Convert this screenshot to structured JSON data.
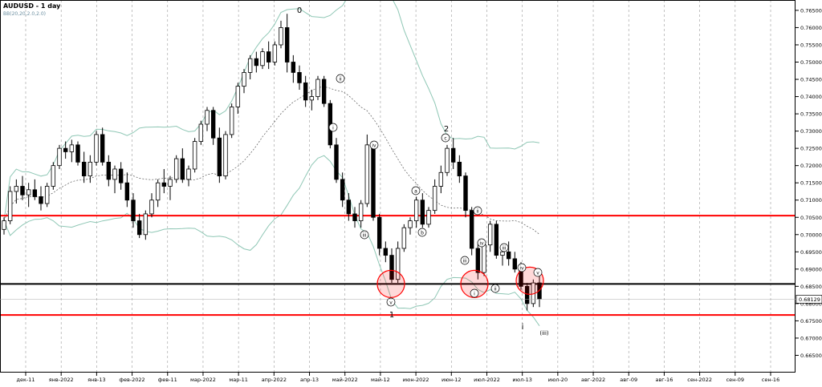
{
  "header": {
    "title": "AUDUSD - 1 day",
    "indicator": "BB(20,20,2.0,2.0)"
  },
  "price_label": "0.68129",
  "chart_data": {
    "type": "candlestick",
    "title": "AUDUSD - 1 day",
    "indicator": "BB(20,20,2.0,2.0)",
    "ylim": [
      0.66,
      0.768
    ],
    "y_ticks": [
      "0.76500",
      "0.76000",
      "0.75500",
      "0.75000",
      "0.74500",
      "0.74000",
      "0.73500",
      "0.73000",
      "0.72500",
      "0.72000",
      "0.71500",
      "0.71000",
      "0.70500",
      "0.70000",
      "0.69500",
      "0.69000",
      "0.68500",
      "0.68000",
      "0.67500",
      "0.67000",
      "0.66500"
    ],
    "x_ticks": [
      "дек-11",
      "янв-2022",
      "янв-13",
      "фев-2022",
      "фев-11",
      "мар-2022",
      "мар-11",
      "апр-2022",
      "апр-13",
      "май-2022",
      "май-12",
      "июн-2022",
      "июн-12",
      "июл-2022",
      "июл-13",
      "июл-20",
      "авг-2022",
      "авг-09",
      "авг-16",
      "сен-2022",
      "сен-09",
      "сен-16"
    ],
    "colors": {
      "bull_candle": "#ffffff",
      "bear_candle": "#000000",
      "bollinger": "#8fc7b5",
      "support_resistance": "#ff0000",
      "key_level": "#000000",
      "grid": "#9a9a9a"
    },
    "horizontal_lines": [
      {
        "price": 0.7055,
        "color": "red"
      },
      {
        "price": 0.6857,
        "color": "black"
      },
      {
        "price": 0.6767,
        "color": "red"
      }
    ],
    "wave_labels": [
      "0",
      "1",
      "2",
      "i",
      "ii",
      "iii",
      "iv",
      "v",
      "a",
      "b",
      "c",
      "ii",
      "iii",
      "iv",
      "i",
      "ii",
      "iii",
      "iv",
      "v",
      "i",
      "(iii)"
    ],
    "candles_ohlc": [
      [
        0.7015,
        0.705,
        0.7,
        0.704
      ],
      [
        0.704,
        0.714,
        0.703,
        0.7125
      ],
      [
        0.7125,
        0.716,
        0.709,
        0.714
      ],
      [
        0.714,
        0.717,
        0.71,
        0.7115
      ],
      [
        0.7115,
        0.715,
        0.708,
        0.713
      ],
      [
        0.713,
        0.716,
        0.71,
        0.711
      ],
      [
        0.711,
        0.714,
        0.707,
        0.709
      ],
      [
        0.709,
        0.715,
        0.708,
        0.714
      ],
      [
        0.714,
        0.721,
        0.713,
        0.72
      ],
      [
        0.72,
        0.726,
        0.719,
        0.725
      ],
      [
        0.725,
        0.727,
        0.722,
        0.724
      ],
      [
        0.724,
        0.7275,
        0.721,
        0.726
      ],
      [
        0.726,
        0.727,
        0.72,
        0.721
      ],
      [
        0.721,
        0.724,
        0.715,
        0.717
      ],
      [
        0.717,
        0.723,
        0.715,
        0.721
      ],
      [
        0.721,
        0.73,
        0.72,
        0.729
      ],
      [
        0.729,
        0.731,
        0.72,
        0.721
      ],
      [
        0.721,
        0.723,
        0.714,
        0.716
      ],
      [
        0.716,
        0.72,
        0.712,
        0.719
      ],
      [
        0.719,
        0.721,
        0.713,
        0.715
      ],
      [
        0.715,
        0.718,
        0.708,
        0.71
      ],
      [
        0.71,
        0.712,
        0.702,
        0.704
      ],
      [
        0.704,
        0.706,
        0.699,
        0.7
      ],
      [
        0.7,
        0.707,
        0.6985,
        0.706
      ],
      [
        0.706,
        0.712,
        0.705,
        0.71
      ],
      [
        0.71,
        0.716,
        0.708,
        0.715
      ],
      [
        0.715,
        0.719,
        0.712,
        0.714
      ],
      [
        0.714,
        0.717,
        0.71,
        0.716
      ],
      [
        0.716,
        0.723,
        0.715,
        0.722
      ],
      [
        0.722,
        0.725,
        0.715,
        0.716
      ],
      [
        0.716,
        0.72,
        0.714,
        0.719
      ],
      [
        0.719,
        0.728,
        0.718,
        0.727
      ],
      [
        0.727,
        0.733,
        0.726,
        0.732
      ],
      [
        0.732,
        0.737,
        0.73,
        0.736
      ],
      [
        0.736,
        0.737,
        0.726,
        0.728
      ],
      [
        0.728,
        0.731,
        0.715,
        0.717
      ],
      [
        0.717,
        0.73,
        0.716,
        0.729
      ],
      [
        0.729,
        0.738,
        0.728,
        0.737
      ],
      [
        0.737,
        0.744,
        0.735,
        0.743
      ],
      [
        0.743,
        0.748,
        0.741,
        0.747
      ],
      [
        0.747,
        0.752,
        0.745,
        0.751
      ],
      [
        0.751,
        0.753,
        0.747,
        0.749
      ],
      [
        0.749,
        0.754,
        0.748,
        0.753
      ],
      [
        0.753,
        0.756,
        0.748,
        0.75
      ],
      [
        0.75,
        0.756,
        0.749,
        0.755
      ],
      [
        0.755,
        0.762,
        0.754,
        0.76
      ],
      [
        0.76,
        0.764,
        0.747,
        0.75
      ],
      [
        0.75,
        0.752,
        0.744,
        0.747
      ],
      [
        0.747,
        0.749,
        0.742,
        0.744
      ],
      [
        0.744,
        0.746,
        0.737,
        0.739
      ],
      [
        0.739,
        0.742,
        0.736,
        0.74
      ],
      [
        0.74,
        0.746,
        0.739,
        0.745
      ],
      [
        0.745,
        0.746,
        0.737,
        0.738
      ],
      [
        0.738,
        0.739,
        0.725,
        0.726
      ],
      [
        0.726,
        0.728,
        0.715,
        0.716
      ],
      [
        0.716,
        0.718,
        0.708,
        0.71
      ],
      [
        0.71,
        0.712,
        0.704,
        0.706
      ],
      [
        0.706,
        0.708,
        0.702,
        0.704
      ],
      [
        0.704,
        0.71,
        0.702,
        0.709
      ],
      [
        0.709,
        0.729,
        0.708,
        0.726
      ],
      [
        0.726,
        0.727,
        0.704,
        0.705
      ],
      [
        0.705,
        0.706,
        0.694,
        0.696
      ],
      [
        0.696,
        0.698,
        0.692,
        0.694
      ],
      [
        0.694,
        0.696,
        0.686,
        0.687
      ],
      [
        0.687,
        0.698,
        0.686,
        0.696
      ],
      [
        0.696,
        0.703,
        0.695,
        0.702
      ],
      [
        0.702,
        0.705,
        0.7,
        0.704
      ],
      [
        0.704,
        0.711,
        0.702,
        0.71
      ],
      [
        0.71,
        0.712,
        0.702,
        0.703
      ],
      [
        0.703,
        0.708,
        0.702,
        0.707
      ],
      [
        0.707,
        0.716,
        0.706,
        0.714
      ],
      [
        0.714,
        0.72,
        0.712,
        0.718
      ],
      [
        0.718,
        0.726,
        0.717,
        0.725
      ],
      [
        0.725,
        0.728,
        0.719,
        0.721
      ],
      [
        0.721,
        0.723,
        0.715,
        0.717
      ],
      [
        0.717,
        0.718,
        0.705,
        0.707
      ],
      [
        0.707,
        0.708,
        0.694,
        0.696
      ],
      [
        0.696,
        0.698,
        0.687,
        0.689
      ],
      [
        0.689,
        0.698,
        0.688,
        0.697
      ],
      [
        0.697,
        0.704,
        0.695,
        0.703
      ],
      [
        0.703,
        0.704,
        0.693,
        0.694
      ],
      [
        0.694,
        0.696,
        0.691,
        0.695
      ],
      [
        0.695,
        0.698,
        0.691,
        0.693
      ],
      [
        0.693,
        0.695,
        0.689,
        0.69
      ],
      [
        0.69,
        0.692,
        0.684,
        0.685
      ],
      [
        0.685,
        0.686,
        0.678,
        0.68
      ],
      [
        0.68,
        0.687,
        0.679,
        0.686
      ],
      [
        0.686,
        0.688,
        0.679,
        0.6813
      ]
    ]
  }
}
